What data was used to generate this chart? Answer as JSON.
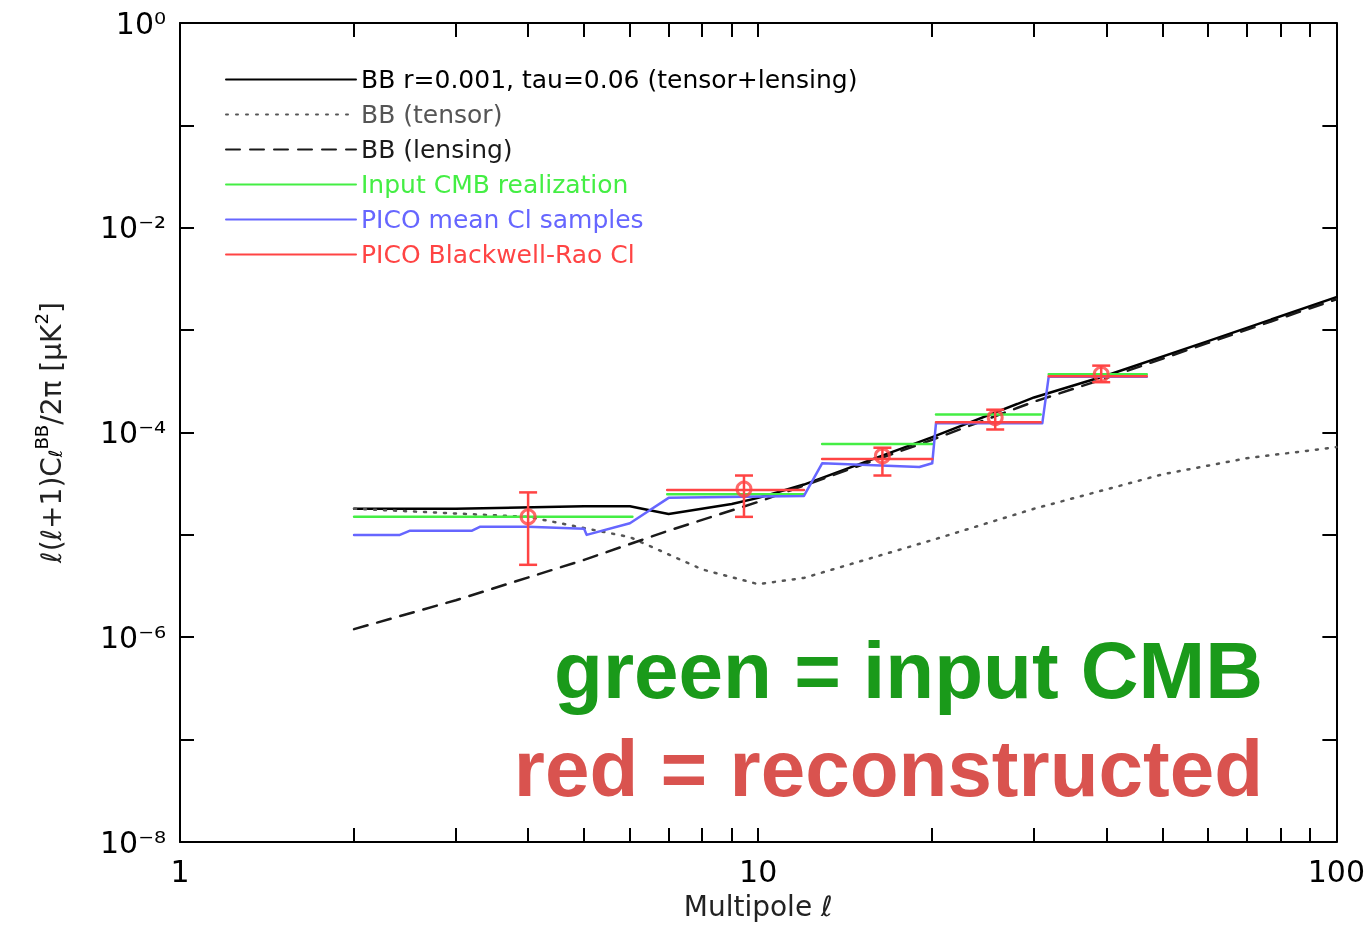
{
  "chart_data": {
    "type": "line",
    "xlabel": "Multipole ℓ",
    "ylabel": "ℓ(ℓ+1)C$_{ℓ}$$^{BB}$/2π [μK$^{2}$]",
    "log": "xy",
    "xlim": [
      1,
      100
    ],
    "ylim": [
      1e-08,
      1
    ],
    "xticks": [
      1,
      {
        "value": 2,
        "label": null
      },
      {
        "value": 3,
        "label": null
      },
      {
        "value": 4,
        "label": null
      },
      {
        "value": 5,
        "label": null
      },
      {
        "value": 6,
        "label": null
      },
      {
        "value": 7,
        "label": null
      },
      {
        "value": 8,
        "label": null
      },
      {
        "value": 9,
        "label": null
      },
      10,
      {
        "value": 20,
        "label": null
      },
      {
        "value": 30,
        "label": null
      },
      {
        "value": 40,
        "label": null
      },
      {
        "value": 50,
        "label": null
      },
      {
        "value": 60,
        "label": null
      },
      {
        "value": 70,
        "label": null
      },
      {
        "value": 80,
        "label": null
      },
      {
        "value": 90,
        "label": null
      },
      100
    ],
    "yticks": [
      {
        "value": 1e-08,
        "label": "10⁻⁸"
      },
      {
        "value": 1e-07,
        "label": null
      },
      {
        "value": 1e-06,
        "label": "10⁻⁶"
      },
      {
        "value": 1e-05,
        "label": null
      },
      {
        "value": 0.0001,
        "label": "10⁻⁴"
      },
      {
        "value": 0.001,
        "label": null
      },
      {
        "value": 0.01,
        "label": "10⁻²"
      },
      {
        "value": 0.1,
        "label": null
      },
      {
        "value": 1,
        "label": "10⁰"
      }
    ],
    "grid": false,
    "legend": "top left",
    "marker": "none",
    "series": [
      {
        "name": "BB r=0.001, tau=0.06 (tensor+lensing)",
        "color": "#000000",
        "line_style": "solid",
        "x": [
          2,
          3,
          5,
          6,
          7,
          9,
          10,
          12,
          20,
          30,
          40,
          60,
          100
        ],
        "values": [
          1.8e-05,
          1.8e-05,
          1.9e-05,
          1.9e-05,
          1.6e-05,
          2e-05,
          2.3e-05,
          3.1e-05,
          9e-05,
          0.00022,
          0.00036,
          0.00078,
          0.0021
        ]
      },
      {
        "name": "BB (tensor)",
        "color": "#555555",
        "line_style": "dotted",
        "x": [
          2,
          4,
          6,
          8,
          10,
          12,
          20,
          30,
          50,
          70,
          100
        ],
        "values": [
          1.8e-05,
          1.5e-05,
          9.5e-06,
          4.6e-06,
          3.3e-06,
          3.8e-06,
          8.9e-06,
          1.8e-05,
          3.9e-05,
          5.6e-05,
          7.2e-05
        ]
      },
      {
        "name": "BB (lensing)",
        "color": "#1a1a1a",
        "line_style": "dashed",
        "x": [
          2,
          3,
          5,
          7,
          10,
          20,
          30,
          40,
          60,
          100
        ],
        "values": [
          1.2e-06,
          2.3e-06,
          5.7e-06,
          1.1e-05,
          2.1e-05,
          8.5e-05,
          0.0002,
          0.00034,
          0.00075,
          0.002
        ]
      },
      {
        "name": "Input CMB realization",
        "color": "#44ee44",
        "line_style": "solid",
        "x": [
          2,
          6.06,
          6.5,
          6.96,
          12,
          12.4,
          12.9,
          20,
          20.1,
          20.3,
          30.8,
          31.3,
          31.8,
          47
        ],
        "values": [
          1.5e-05,
          1.5e-05,
          null,
          2.5e-05,
          2.5e-05,
          null,
          7.7e-05,
          7.7e-05,
          null,
          0.00015,
          0.00015,
          null,
          0.00037,
          0.00037
        ]
      },
      {
        "name": "PICO mean Cl samples",
        "color": "#6666ff",
        "line_style": "solid",
        "x": [
          2,
          2.4,
          2.5,
          3.2,
          3.3,
          4,
          5,
          5.05,
          6,
          7,
          12,
          12.9,
          19,
          20,
          20.3,
          31,
          31.8,
          47
        ],
        "values": [
          1e-05,
          1e-05,
          1.1e-05,
          1.1e-05,
          1.2e-05,
          1.2e-05,
          1.15e-05,
          1e-05,
          1.3e-05,
          2.3e-05,
          2.4e-05,
          5e-05,
          4.6e-05,
          5e-05,
          0.000123,
          0.000123,
          0.00035,
          0.00035
        ]
      },
      {
        "name": "PICO Blackwell-Rao Cl",
        "color": "#ff4444",
        "line_style": "solid",
        "x": [
          6.96,
          12,
          12.4,
          12.9,
          20,
          20.1,
          20.3,
          30.8,
          31.3,
          31.8,
          47
        ],
        "values": [
          2.75e-05,
          2.75e-05,
          null,
          5.5e-05,
          5.5e-05,
          null,
          0.000126,
          0.000126,
          null,
          0.000355,
          0.000355
        ]
      },
      {
        "type": "scatter",
        "color": "#ff4444",
        "marker": "circle",
        "x": [
          4,
          9.45,
          16.4,
          25.7,
          39.2
        ],
        "values": [
          1.5e-05,
          2.8e-05,
          5.9e-05,
          0.00014,
          0.00037
        ],
        "errors": [
          [
            5.1e-06,
            2.6e-05
          ],
          [
            1.5e-05,
            3.8e-05
          ],
          [
            3.8e-05,
            7.1e-05
          ],
          [
            0.000107,
            0.000167
          ],
          [
            0.00031,
            0.00045
          ]
        ]
      }
    ],
    "annotations": [
      "green = input CMB",
      "red = reconstructed"
    ]
  }
}
